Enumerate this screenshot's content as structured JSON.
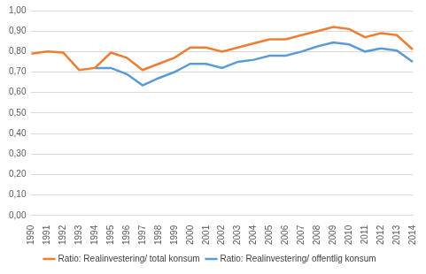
{
  "chart_data": {
    "type": "line",
    "categories": [
      "1990",
      "1991",
      "1992",
      "1993",
      "1994",
      "1995",
      "1996",
      "1997",
      "1998",
      "1999",
      "2000",
      "2001",
      "2002",
      "2003",
      "2004",
      "2005",
      "2006",
      "2007",
      "2008",
      "2009",
      "2010",
      "2011",
      "2012",
      "2013",
      "2014"
    ],
    "series": [
      {
        "name": "Ratio: Realinvestering/ total konsum",
        "color": "#ed7d31",
        "values": [
          0.79,
          0.8,
          0.795,
          0.71,
          0.72,
          0.795,
          0.77,
          0.71,
          0.74,
          0.77,
          0.82,
          0.82,
          0.8,
          0.82,
          0.84,
          0.86,
          0.86,
          0.88,
          0.9,
          0.92,
          0.91,
          0.87,
          0.89,
          0.88,
          0.81
        ]
      },
      {
        "name": "Ratio: Realinvestering/ offentlig konsum",
        "color": "#5b9bd5",
        "values": [
          null,
          null,
          null,
          null,
          0.72,
          0.72,
          0.69,
          0.635,
          0.67,
          0.7,
          0.74,
          0.74,
          0.72,
          0.75,
          0.76,
          0.78,
          0.78,
          0.8,
          0.825,
          0.845,
          0.835,
          0.8,
          0.815,
          0.805,
          0.75
        ]
      }
    ],
    "ylim": [
      0,
      1
    ],
    "yticks": [
      {
        "value": 0,
        "label": "0,00"
      },
      {
        "value": 0.1,
        "label": "0,10"
      },
      {
        "value": 0.2,
        "label": "0,20"
      },
      {
        "value": 0.3,
        "label": "0,30"
      },
      {
        "value": 0.4,
        "label": "0,40"
      },
      {
        "value": 0.5,
        "label": "0,50"
      },
      {
        "value": 0.6,
        "label": "0,60"
      },
      {
        "value": 0.7,
        "label": "0,70"
      },
      {
        "value": 0.8,
        "label": "0,80"
      },
      {
        "value": 0.9,
        "label": "0,90"
      },
      {
        "value": 1,
        "label": "1,00"
      }
    ],
    "grid": true,
    "legend": "bottom"
  }
}
